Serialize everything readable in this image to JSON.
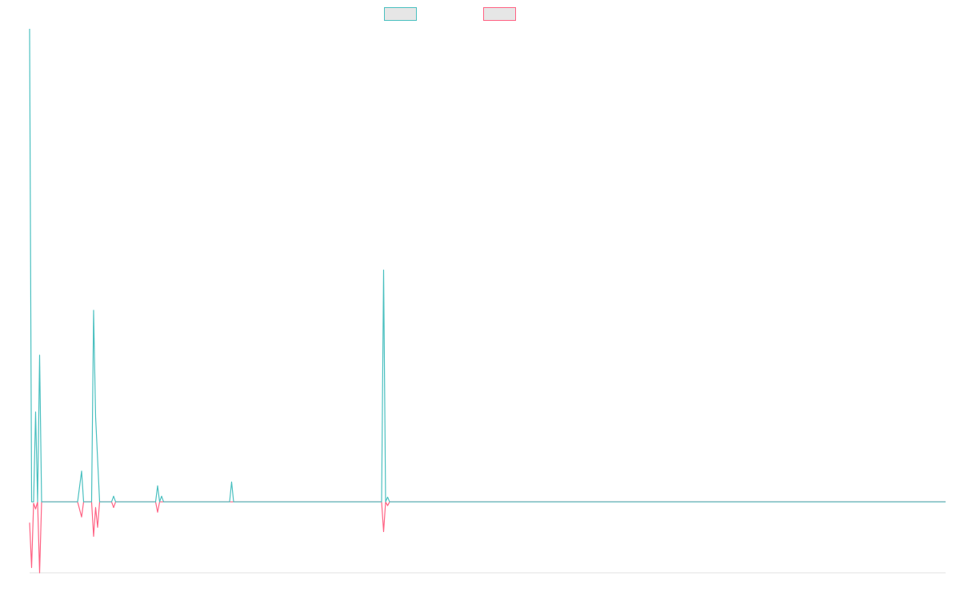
{
  "chart_data": {
    "type": "line",
    "xlim": [
      0,
      458
    ],
    "ylim": [
      -15,
      100
    ],
    "series": [
      {
        "color": "#4bc0c0",
        "x": [
          0,
          1,
          2,
          3,
          4,
          5,
          6,
          24,
          26,
          27,
          31,
          32,
          33,
          35,
          41,
          42,
          43,
          63,
          64,
          65,
          66,
          67,
          100,
          101,
          102,
          176,
          177,
          178,
          179,
          180,
          458
        ],
        "values": [
          100,
          0,
          0,
          19,
          0,
          31,
          0,
          0,
          6.5,
          0,
          0,
          40.5,
          18,
          0,
          0,
          1.2,
          0,
          0,
          3.4,
          0,
          1.2,
          0,
          0,
          4.2,
          0,
          0,
          49,
          0,
          1,
          0,
          0
        ]
      },
      {
        "color": "#ff6384",
        "x": [
          0,
          1,
          2,
          3,
          4,
          5,
          6,
          24,
          26,
          27,
          31,
          32,
          33,
          34,
          35,
          41,
          42,
          43,
          63,
          64,
          65,
          176,
          177,
          178,
          179,
          180,
          458
        ],
        "values": [
          -4.4,
          -13.9,
          -0.3,
          -1.5,
          0,
          -15,
          0,
          0,
          -3.2,
          0,
          0,
          -7.3,
          -1.2,
          -5.4,
          0,
          0,
          -1.2,
          0,
          0,
          -2.2,
          0,
          0,
          -6.3,
          0,
          -0.8,
          0,
          0
        ]
      }
    ]
  }
}
